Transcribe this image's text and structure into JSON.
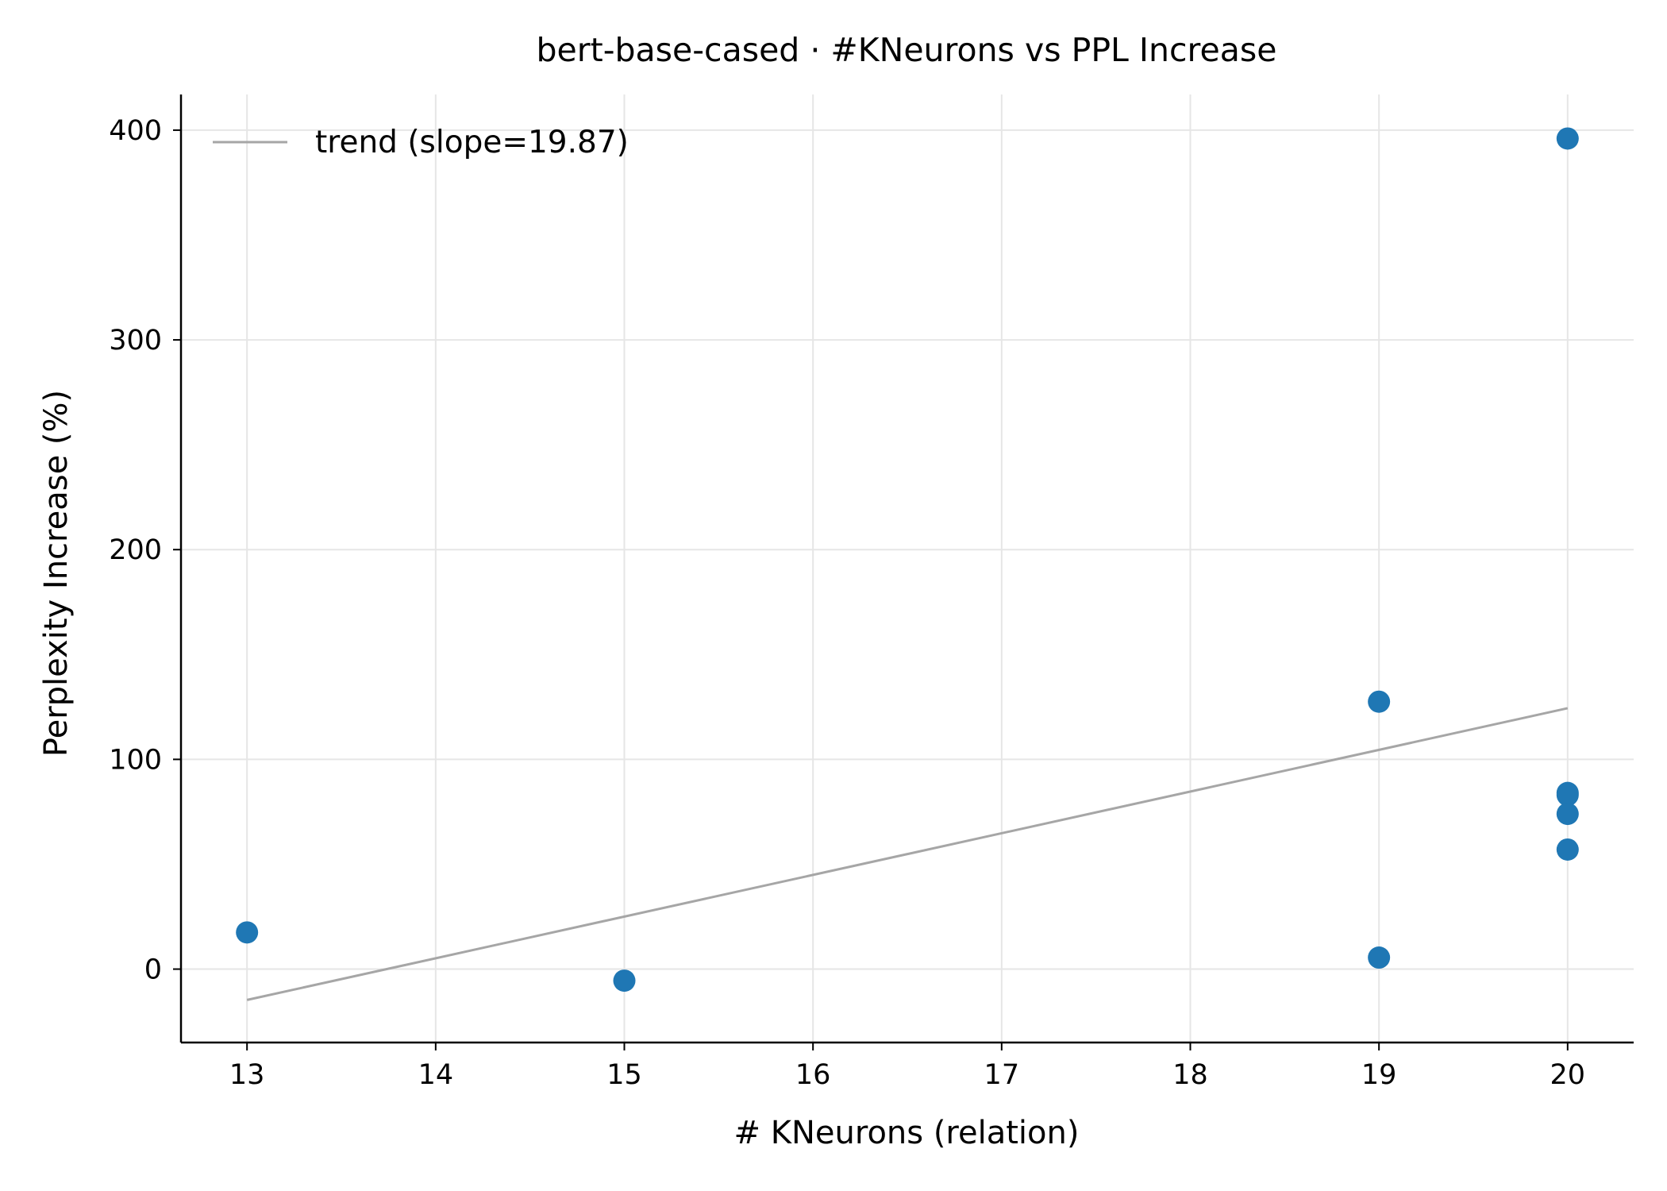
{
  "chart_data": {
    "type": "scatter",
    "title": "bert-base-cased · #KNeurons vs PPL Increase",
    "xlabel": "# KNeurons (relation)",
    "ylabel": "Perplexity Increase (%)",
    "xlim": [
      12.65,
      20.35
    ],
    "ylim": [
      -35,
      417
    ],
    "xticks": [
      13,
      14,
      15,
      16,
      17,
      18,
      19,
      20
    ],
    "yticks": [
      0,
      100,
      200,
      300,
      400
    ],
    "grid": true,
    "legend_position": "top-left",
    "points": [
      {
        "x": 13,
        "y": 17.5
      },
      {
        "x": 15,
        "y": -5.5
      },
      {
        "x": 19,
        "y": 127.5
      },
      {
        "x": 19,
        "y": 5.5
      },
      {
        "x": 20,
        "y": 396
      },
      {
        "x": 20,
        "y": 84
      },
      {
        "x": 20,
        "y": 83
      },
      {
        "x": 20,
        "y": 74
      },
      {
        "x": 20,
        "y": 57
      }
    ],
    "trend": {
      "label": "trend (slope=19.87)",
      "slope": 19.87,
      "x_start": 13,
      "x_end": 20,
      "y_start": -14.7,
      "y_end": 124.4
    },
    "colors": {
      "points": "#1f77b4",
      "trend": "#a6a6a6",
      "grid": "#e6e6e6",
      "axis": "#000000"
    }
  }
}
